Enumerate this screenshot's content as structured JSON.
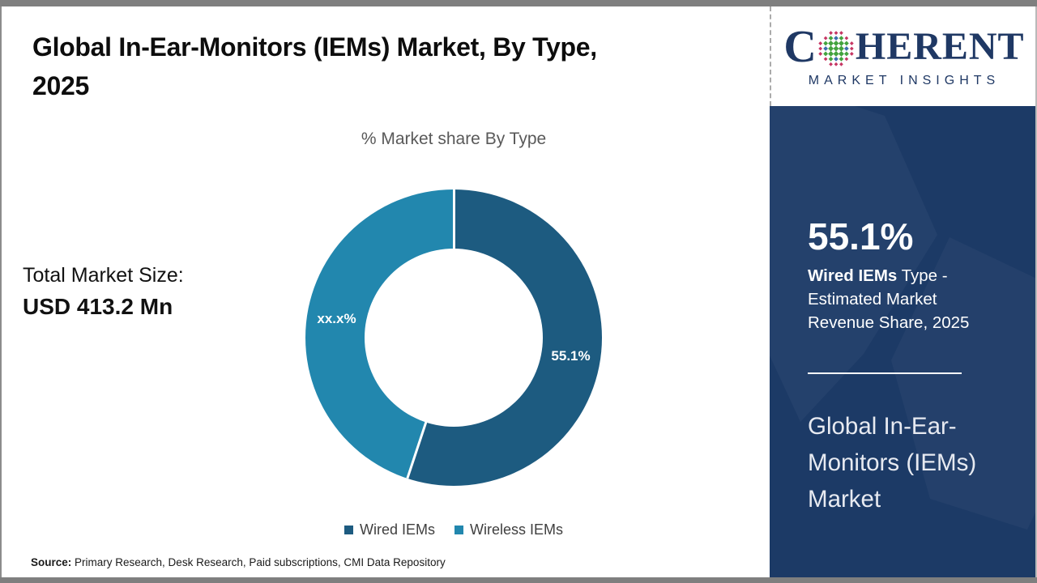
{
  "header": {
    "title_lines": [
      "Global In-Ear-Monitors (IEMs) Market, By Type,",
      "2025"
    ]
  },
  "main": {
    "subtitle": "% Market share By Type",
    "total_label": "Total Market Size:",
    "total_value": "USD 413.2 Mn"
  },
  "chart_data": {
    "type": "pie",
    "donut": true,
    "title": "% Market share By Type",
    "series": [
      {
        "name": "Wired IEMs",
        "value": 55.1,
        "label": "55.1%",
        "color": "#1d5b80"
      },
      {
        "name": "Wireless IEMs",
        "value": 44.9,
        "label": "xx.x%",
        "color": "#2287ae"
      }
    ],
    "start_angle_deg": 0,
    "inner_radius_ratio": 0.6,
    "label_color": "#ffffff",
    "legend_position": "bottom"
  },
  "footer": {
    "source_label": "Source:",
    "source_text": "Primary Research, Desk Research, Paid subscriptions, CMI Data Repository"
  },
  "sidebar": {
    "logo": {
      "wordmark_start": "C",
      "wordmark_end": "HERENT",
      "tagline": "MARKET INSIGHTS",
      "brand_color": "#1f3864",
      "globe_colors": {
        "green": "#43a33e",
        "blue": "#3b6fae",
        "red": "#c63663"
      }
    },
    "highlight": {
      "value": "55.1%",
      "segment": "Wired IEMs",
      "description": " Type - Estimated Market Revenue Share, 2025"
    },
    "market_name": "Global In-Ear-Monitors (IEMs) Market",
    "panel_color": "#1c3a66"
  }
}
